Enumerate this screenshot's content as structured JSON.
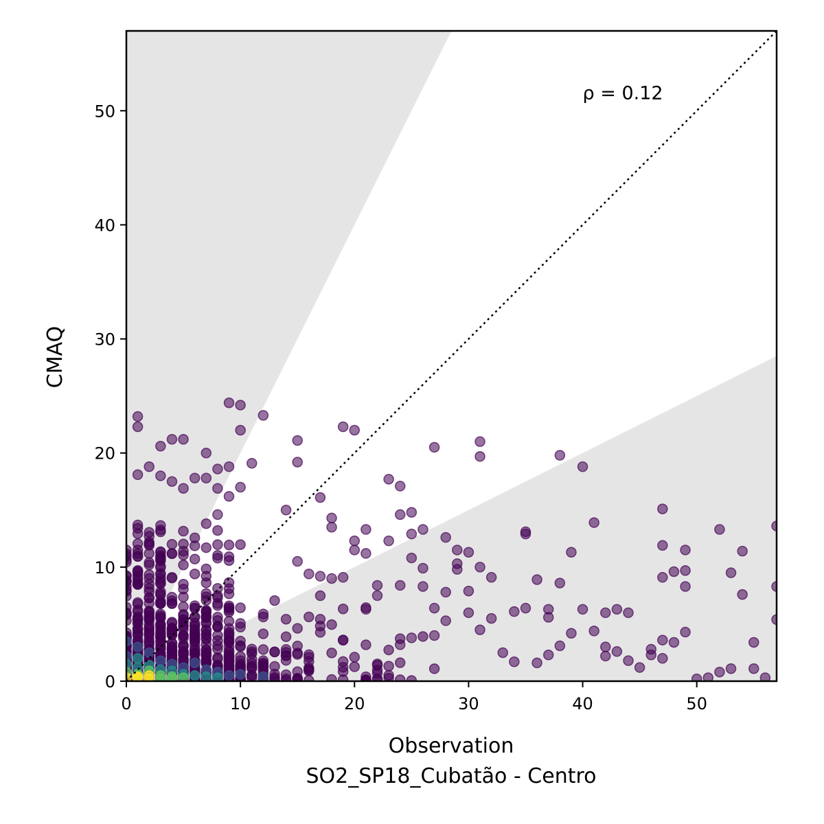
{
  "chart_data": {
    "type": "scatter",
    "xlabel": "Observation",
    "xlabel2": "SO2_SP18_Cubatão - Centro",
    "ylabel": "CMAQ",
    "xlim": [
      0,
      57
    ],
    "ylim": [
      0,
      57
    ],
    "xticks": [
      0,
      10,
      20,
      30,
      40,
      50
    ],
    "yticks": [
      0,
      10,
      20,
      30,
      40,
      50
    ],
    "annotation": "ρ = 0.12",
    "annotation_pos_data": [
      40,
      51
    ],
    "reference_line": {
      "slope": 1,
      "style": "dotted",
      "color": "#000000"
    },
    "shaded_regions": [
      {
        "description": "above 2:1 line",
        "slope": 2,
        "color": "#e5e5e5"
      },
      {
        "description": "below 1:2 line",
        "slope": 0.5,
        "color": "#e5e5e5"
      }
    ],
    "colormap": [
      "#440154",
      "#3b528b",
      "#21918c",
      "#5ec962",
      "#fde725"
    ],
    "points_outlier": [
      [
        1,
        23.2
      ],
      [
        1,
        22.3
      ],
      [
        3,
        20.6
      ],
      [
        4,
        21.2
      ],
      [
        5,
        21.2
      ],
      [
        7,
        20
      ],
      [
        9,
        24.4
      ],
      [
        10,
        24.2
      ],
      [
        10,
        22
      ],
      [
        12,
        23.3
      ],
      [
        11,
        19.1
      ],
      [
        8,
        18.6
      ],
      [
        9,
        18.8
      ],
      [
        1,
        18.1
      ],
      [
        2,
        18.8
      ],
      [
        3,
        18
      ],
      [
        4,
        17.5
      ],
      [
        6,
        17.8
      ],
      [
        7,
        17.8
      ],
      [
        5,
        16.9
      ],
      [
        8,
        16.9
      ],
      [
        9,
        16.2
      ],
      [
        10,
        17
      ],
      [
        8,
        14.6
      ],
      [
        14,
        15
      ],
      [
        15,
        21.1
      ],
      [
        15,
        19.2
      ],
      [
        17,
        16.1
      ],
      [
        18,
        14.3
      ],
      [
        18,
        13.5
      ],
      [
        19,
        22.3
      ],
      [
        20,
        22
      ],
      [
        20,
        12.3
      ],
      [
        21,
        13.3
      ],
      [
        20,
        11.5
      ],
      [
        21,
        11.2
      ],
      [
        23,
        17.7
      ],
      [
        24,
        17.1
      ],
      [
        24,
        14.6
      ],
      [
        25,
        14.8
      ],
      [
        26,
        13.3
      ],
      [
        25,
        12.9
      ],
      [
        23,
        12.3
      ],
      [
        25,
        10.8
      ],
      [
        27,
        20.5
      ],
      [
        31,
        21
      ],
      [
        31,
        19.7
      ],
      [
        29,
        11.5
      ],
      [
        30,
        11.3
      ],
      [
        28,
        12.6
      ],
      [
        29,
        10.3
      ],
      [
        29,
        9.8
      ],
      [
        31,
        10
      ],
      [
        32,
        9.1
      ],
      [
        26,
        9.9
      ],
      [
        38,
        19.8
      ],
      [
        40,
        18.8
      ],
      [
        35,
        13.1
      ],
      [
        35,
        12.9
      ],
      [
        36,
        8.9
      ],
      [
        38,
        8.6
      ],
      [
        39,
        11.3
      ],
      [
        41,
        13.9
      ],
      [
        47,
        15.1
      ],
      [
        47,
        11.9
      ],
      [
        49,
        11.5
      ],
      [
        48,
        9.6
      ],
      [
        47,
        9.1
      ],
      [
        49,
        9.7
      ],
      [
        49,
        8.3
      ],
      [
        52,
        13.3
      ],
      [
        54,
        11.4
      ],
      [
        53,
        9.5
      ],
      [
        54,
        7.6
      ],
      [
        57,
        13.6
      ],
      [
        57,
        8.3
      ],
      [
        57,
        5.4
      ],
      [
        55,
        3.4
      ],
      [
        49,
        4.3
      ],
      [
        47,
        3.6
      ],
      [
        48,
        3.4
      ],
      [
        42,
        6
      ],
      [
        43,
        6.3
      ],
      [
        44,
        6
      ],
      [
        40,
        6.3
      ],
      [
        39,
        4.2
      ],
      [
        35,
        6.4
      ],
      [
        34,
        6.1
      ],
      [
        37,
        6.3
      ],
      [
        37,
        5.6
      ],
      [
        32,
        5.5
      ],
      [
        31,
        4.5
      ],
      [
        30,
        6
      ],
      [
        28,
        5.3
      ],
      [
        27,
        4
      ],
      [
        25,
        3.8
      ],
      [
        24,
        3.2
      ],
      [
        41,
        4.4
      ],
      [
        42,
        3
      ],
      [
        42,
        2.2
      ],
      [
        46,
        2.8
      ],
      [
        46,
        2.3
      ],
      [
        47,
        2
      ],
      [
        45,
        1.2
      ],
      [
        50,
        0.2
      ],
      [
        51,
        0.3
      ],
      [
        52,
        0.8
      ],
      [
        53,
        1.1
      ],
      [
        55,
        1.1
      ],
      [
        56,
        0.3
      ],
      [
        43,
        2.6
      ],
      [
        44,
        1.8
      ],
      [
        38,
        3.1
      ],
      [
        37,
        2.3
      ],
      [
        36,
        1.6
      ],
      [
        33,
        2.5
      ],
      [
        34,
        1.7
      ],
      [
        30,
        7.9
      ],
      [
        28,
        7.8
      ],
      [
        27,
        6.4
      ],
      [
        26,
        8.3
      ],
      [
        22,
        8.4
      ],
      [
        22,
        7.5
      ],
      [
        21,
        6.3
      ],
      [
        24,
        8.4
      ],
      [
        19,
        9.1
      ],
      [
        18,
        9
      ],
      [
        17,
        9.2
      ],
      [
        16,
        9.4
      ],
      [
        15,
        10.5
      ]
    ]
  }
}
